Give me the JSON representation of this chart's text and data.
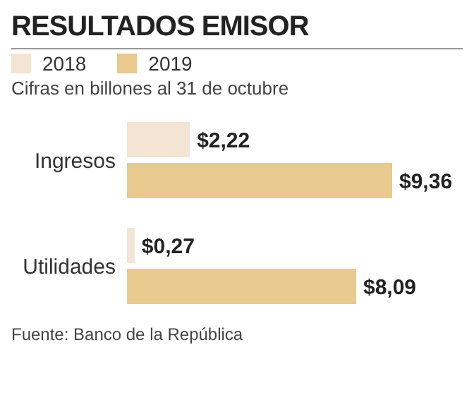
{
  "chart_data": {
    "type": "bar",
    "orientation": "horizontal",
    "title": "RESULTADOS EMISOR",
    "subtitle": "Cifras en billones al 31 de octubre",
    "categories": [
      "Ingresos",
      "Utilidades"
    ],
    "series": [
      {
        "name": "2018",
        "color": "#f3e4d3",
        "values": [
          2.22,
          0.27
        ],
        "value_labels": [
          "$2,22",
          "$0,27"
        ]
      },
      {
        "name": "2019",
        "color": "#e8c98e",
        "values": [
          9.36,
          8.09
        ],
        "value_labels": [
          "$9,36",
          "$8,09"
        ]
      }
    ],
    "legend": "top left",
    "tick_labels": "y",
    "annotations": [
      "Fuente: Banco de la República"
    ]
  }
}
